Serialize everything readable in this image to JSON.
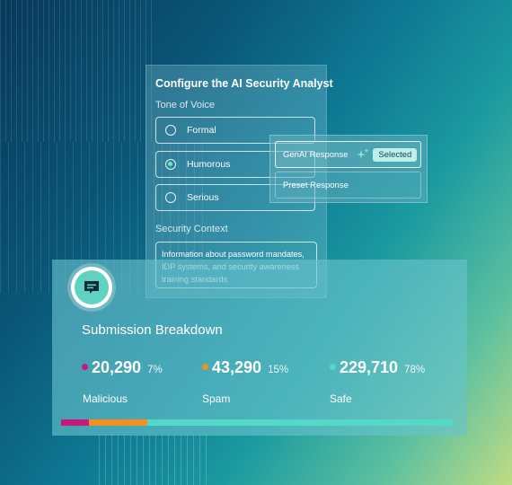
{
  "config": {
    "title": "Configure the AI Security Analyst",
    "tone_label": "Tone of Voice",
    "tone_options": [
      {
        "label": "Formal",
        "checked": false
      },
      {
        "label": "Humorous",
        "checked": true
      },
      {
        "label": "Serious",
        "checked": false
      }
    ],
    "context_label": "Security Context",
    "context_value": "Information about password mandates, IDP systems, and security awareness training standards"
  },
  "response": {
    "genai_label": "GenAI Response",
    "selected_badge": "Selected",
    "preset_label": "Preset Response"
  },
  "breakdown": {
    "title": "Submission Breakdown",
    "icon": "chat-message-icon",
    "stats": [
      {
        "label": "Malicious",
        "value": "20,290",
        "percent": "7%",
        "share": 0.07,
        "color": "#c8187a"
      },
      {
        "label": "Spam",
        "value": "43,290",
        "percent": "15%",
        "share": 0.15,
        "color": "#f5901e"
      },
      {
        "label": "Safe",
        "value": "229,710",
        "percent": "78%",
        "share": 0.78,
        "color": "#56d8c8"
      }
    ]
  }
}
